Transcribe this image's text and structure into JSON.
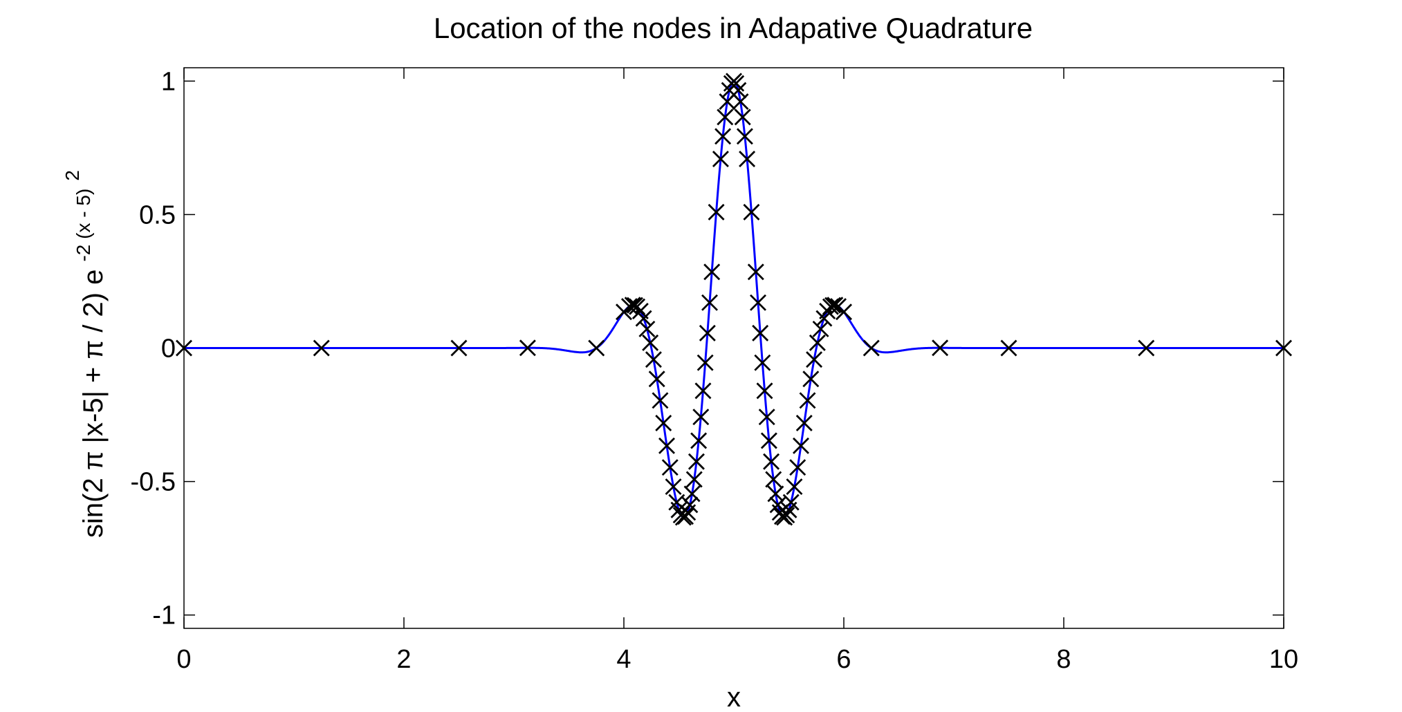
{
  "chart_data": {
    "type": "line",
    "title": "Location of the nodes in Adapative Quadrature",
    "xlabel": "x",
    "ylabel": {
      "base": "sin(2 π |x-5| + π / 2) e",
      "exponent": "-2 (x - 5)",
      "exponent_power": "2"
    },
    "xlim": [
      0,
      10
    ],
    "ylim": [
      -1.05,
      1.05
    ],
    "xticks": [
      0,
      2,
      4,
      6,
      8,
      10
    ],
    "xtick_labels": [
      "0",
      "2",
      "4",
      "6",
      "8",
      "10"
    ],
    "yticks": [
      -1,
      -0.5,
      0,
      0.5,
      1
    ],
    "ytick_labels": [
      "-1",
      "-0.5",
      "0",
      "0.5",
      "1"
    ],
    "grid": false,
    "series": [
      {
        "kind": "line",
        "color": "#0000ff",
        "function": "sin(2*pi*abs(x-5) + pi/2) * exp(-2*(x-5)^2)",
        "x_range": [
          0,
          10
        ]
      },
      {
        "kind": "markers",
        "marker": "x",
        "color": "#000000",
        "x": [
          0,
          1.25,
          2.5,
          3.125,
          3.75,
          4.0,
          4.05,
          4.08,
          4.1,
          4.12,
          4.15,
          4.18,
          4.21,
          4.24,
          4.27,
          4.3,
          4.33,
          4.36,
          4.39,
          4.42,
          4.45,
          4.48,
          4.5,
          4.52,
          4.54,
          4.56,
          4.58,
          4.6,
          4.62,
          4.64,
          4.66,
          4.68,
          4.7,
          4.72,
          4.74,
          4.76,
          4.78,
          4.8,
          4.84,
          4.88,
          4.9,
          4.92,
          4.94,
          4.96,
          4.98,
          5.0,
          5.02,
          5.04,
          5.06,
          5.08,
          5.1,
          5.12,
          5.16,
          5.2,
          5.22,
          5.24,
          5.26,
          5.28,
          5.3,
          5.32,
          5.34,
          5.36,
          5.38,
          5.4,
          5.42,
          5.44,
          5.46,
          5.48,
          5.5,
          5.52,
          5.55,
          5.58,
          5.61,
          5.64,
          5.67,
          5.7,
          5.73,
          5.76,
          5.79,
          5.82,
          5.85,
          5.88,
          5.9,
          5.92,
          5.95,
          6.0,
          6.25,
          6.875,
          7.5,
          8.75,
          10
        ]
      }
    ]
  }
}
